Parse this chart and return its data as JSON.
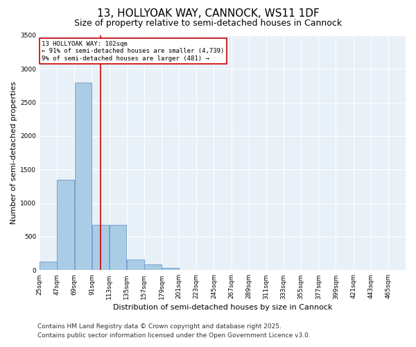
{
  "title": "13, HOLLYOAK WAY, CANNOCK, WS11 1DF",
  "subtitle": "Size of property relative to semi-detached houses in Cannock",
  "xlabel": "Distribution of semi-detached houses by size in Cannock",
  "ylabel": "Number of semi-detached properties",
  "footer_line1": "Contains HM Land Registry data © Crown copyright and database right 2025.",
  "footer_line2": "Contains public sector information licensed under the Open Government Licence v3.0.",
  "bin_labels": [
    "25sqm",
    "47sqm",
    "69sqm",
    "91sqm",
    "113sqm",
    "135sqm",
    "157sqm",
    "179sqm",
    "201sqm",
    "223sqm",
    "245sqm",
    "267sqm",
    "289sqm",
    "311sqm",
    "333sqm",
    "355sqm",
    "377sqm",
    "399sqm",
    "421sqm",
    "443sqm",
    "465sqm"
  ],
  "bin_edges": [
    25,
    47,
    69,
    91,
    113,
    135,
    157,
    179,
    201,
    223,
    245,
    267,
    289,
    311,
    333,
    355,
    377,
    399,
    421,
    443,
    465
  ],
  "bin_values": [
    130,
    1350,
    2800,
    680,
    680,
    160,
    90,
    30,
    0,
    0,
    0,
    0,
    0,
    0,
    0,
    0,
    0,
    0,
    0,
    0,
    0
  ],
  "bar_color": "#aacce4",
  "bar_edge_color": "#6699cc",
  "red_line_x": 102,
  "annotation_title": "13 HOLLYOAK WAY: 102sqm",
  "annotation_line1": "← 91% of semi-detached houses are smaller (4,739)",
  "annotation_line2": "9% of semi-detached houses are larger (481) →",
  "annotation_box_color": "#cc0000",
  "ylim": [
    0,
    3500
  ],
  "yticks": [
    0,
    500,
    1000,
    1500,
    2000,
    2500,
    3000,
    3500
  ],
  "bg_color": "#e8f0f8",
  "grid_color": "#ffffff",
  "title_fontsize": 11,
  "subtitle_fontsize": 9,
  "axis_label_fontsize": 8,
  "tick_fontsize": 6.5,
  "footer_fontsize": 6.5
}
